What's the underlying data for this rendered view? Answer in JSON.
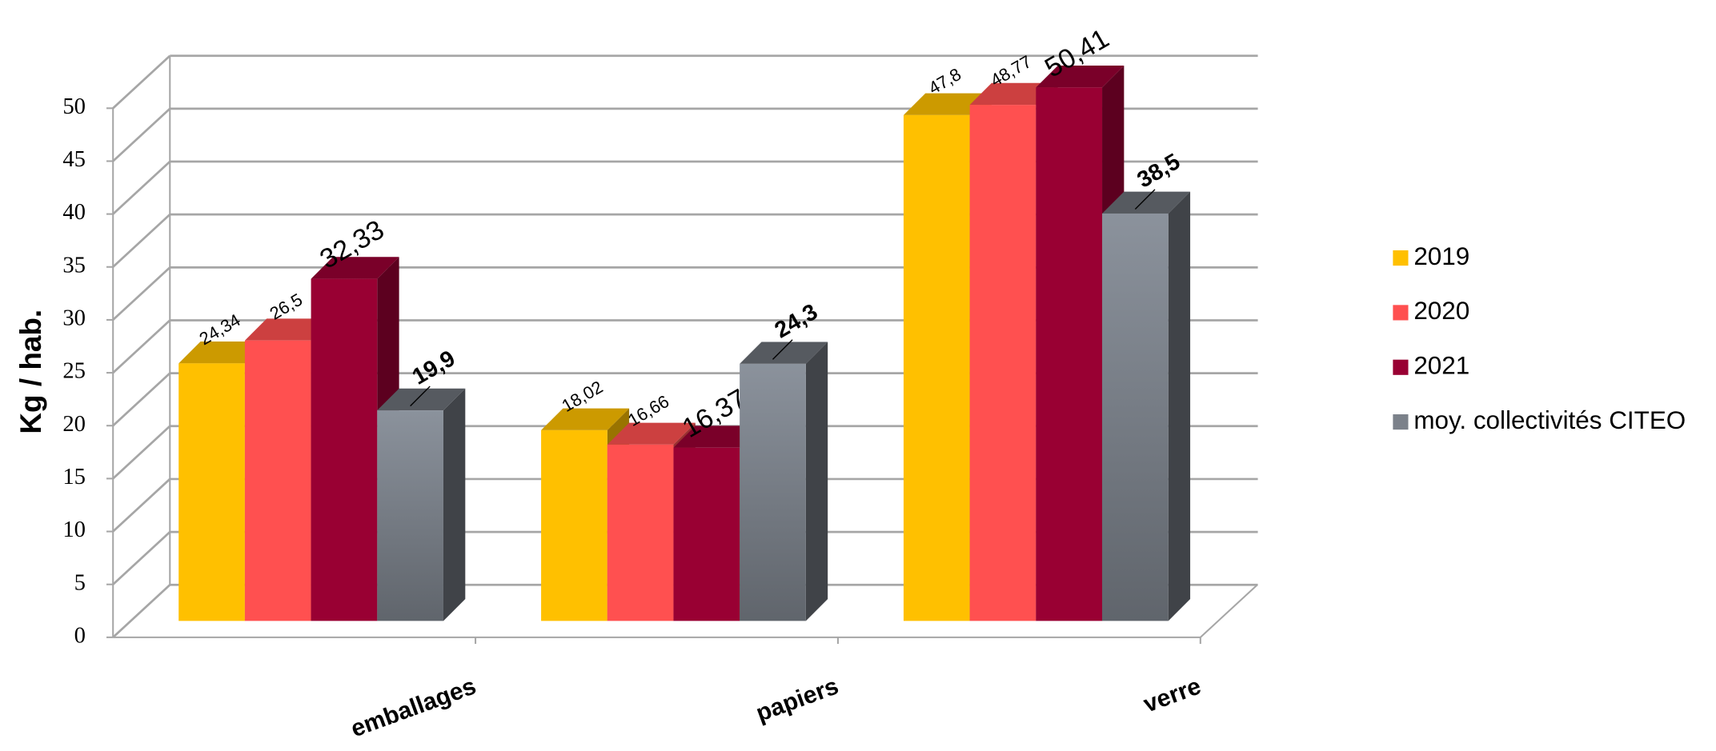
{
  "chart_data": {
    "type": "bar3d",
    "y_label": "Kg / hab.",
    "categories": [
      "emballages",
      "papiers",
      "verre"
    ],
    "series": [
      {
        "name": "2019",
        "color": "#ffc000",
        "values": [
          24.34,
          18.02,
          47.8
        ],
        "value_labels": [
          "24,34",
          "18,02",
          "47,8"
        ]
      },
      {
        "name": "2020",
        "color": "#ff5050",
        "values": [
          26.5,
          16.66,
          48.77
        ],
        "value_labels": [
          "26,5",
          "16,66",
          "48,77"
        ]
      },
      {
        "name": "2021",
        "color": "#990033",
        "values": [
          32.33,
          16.37,
          50.41
        ],
        "value_labels": [
          "32,33",
          "16,37",
          "50,41"
        ]
      },
      {
        "name": "moy. collectivités CITEO",
        "color": "#6b7078",
        "values": [
          19.9,
          24.3,
          38.5
        ],
        "value_labels": [
          "19,9",
          "24,3",
          "38,5"
        ]
      }
    ],
    "ylim": [
      0,
      50
    ],
    "yticks": [
      0,
      5,
      10,
      15,
      20,
      25,
      30,
      35,
      40,
      45,
      50
    ],
    "grid": true
  }
}
